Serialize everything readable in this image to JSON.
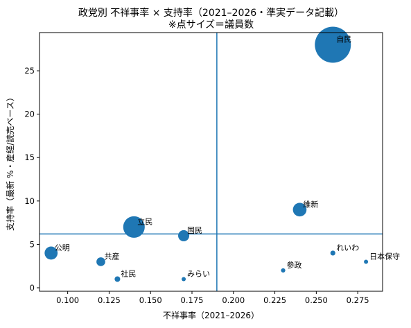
{
  "chart_data": {
    "type": "scatter",
    "title_line1": "政党別 不祥事率 × 支持率（2021–2026・準実データ記載）",
    "title_line2": "※点サイズ＝議員数",
    "xlabel": "不祥事率（2021–2026）",
    "ylabel": "支持率（最新 %・産経/読売ベース）",
    "xlim": [
      0.083,
      0.29
    ],
    "ylim": [
      -0.4,
      29.4
    ],
    "xticks": [
      "0.100",
      "0.125",
      "0.150",
      "0.175",
      "0.200",
      "0.225",
      "0.250",
      "0.275"
    ],
    "xtick_values": [
      0.1,
      0.125,
      0.15,
      0.175,
      0.2,
      0.225,
      0.25,
      0.275
    ],
    "yticks": [
      "0",
      "5",
      "10",
      "15",
      "20",
      "25"
    ],
    "ytick_values": [
      0,
      5,
      10,
      15,
      20,
      25
    ],
    "ref_lines": {
      "x": 0.19,
      "y": 6.2
    },
    "point_color": "#1f77b4",
    "points": [
      {
        "label": "自民",
        "x": 0.26,
        "y": 28,
        "seats": 420
      },
      {
        "label": "立民",
        "x": 0.14,
        "y": 7,
        "seats": 150
      },
      {
        "label": "維新",
        "x": 0.24,
        "y": 9,
        "seats": 60
      },
      {
        "label": "国民",
        "x": 0.17,
        "y": 6,
        "seats": 40
      },
      {
        "label": "公明",
        "x": 0.09,
        "y": 4,
        "seats": 55
      },
      {
        "label": "共産",
        "x": 0.12,
        "y": 3,
        "seats": 25
      },
      {
        "label": "社民",
        "x": 0.13,
        "y": 1,
        "seats": 10
      },
      {
        "label": "みらい",
        "x": 0.17,
        "y": 1,
        "seats": 3
      },
      {
        "label": "参政",
        "x": 0.23,
        "y": 2,
        "seats": 6
      },
      {
        "label": "れいわ",
        "x": 0.26,
        "y": 4,
        "seats": 8
      },
      {
        "label": "日本保守",
        "x": 0.28,
        "y": 3,
        "seats": 5
      }
    ]
  }
}
